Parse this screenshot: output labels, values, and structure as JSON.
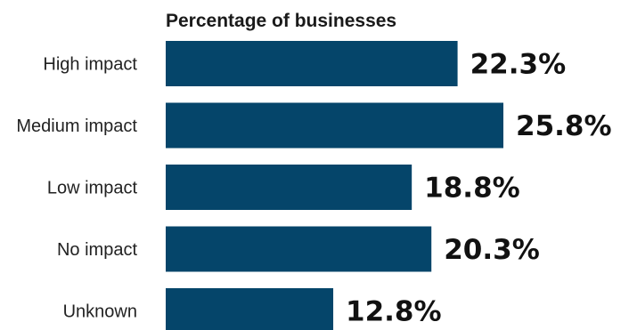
{
  "chart_data": {
    "type": "bar",
    "orientation": "horizontal",
    "title": "Percentage of businesses",
    "categories": [
      "High impact",
      "Medium impact",
      "Low impact",
      "No impact",
      "Unknown"
    ],
    "values": [
      22.3,
      25.8,
      18.8,
      20.3,
      12.8
    ],
    "value_labels": [
      "22.3%",
      "25.8%",
      "18.8%",
      "20.3%",
      "12.8%"
    ],
    "xlim": [
      0,
      25.8
    ],
    "grid": false,
    "legend": "none",
    "bar_color": "#05456a"
  }
}
